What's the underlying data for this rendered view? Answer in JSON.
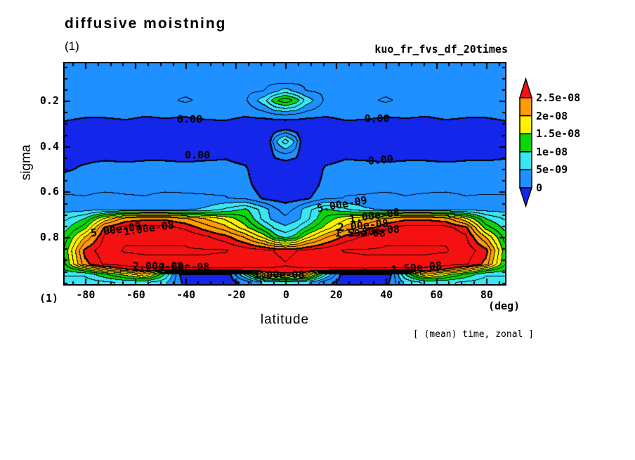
{
  "title": "diffusive moistning",
  "subtitle": "(1)",
  "run_label": "kuo_fr_fvs_df_20times",
  "footer_note": "[ (mean) time, zonal ]",
  "axes": {
    "x": {
      "label": "latitude",
      "unit": "(deg)",
      "min": -88.1,
      "max": 87.6,
      "major_ticks": [
        -80,
        -60,
        -40,
        -20,
        0,
        20,
        40,
        60,
        80
      ],
      "minor_step": 5,
      "tick_labels": [
        "-80",
        "-60",
        "-40",
        "-20",
        "0",
        "20",
        "40",
        "60",
        "80"
      ]
    },
    "y": {
      "label": "sigma",
      "min": 0.036,
      "max": 1.007,
      "major_ticks": [
        0.2,
        0.4,
        0.6,
        0.8
      ],
      "minor_step": 0.05,
      "tick_labels": [
        "0.2",
        "0.4",
        "0.6",
        "0.8"
      ]
    },
    "corner_label": "(1)"
  },
  "colorbar": {
    "labels": [
      "2.5e-08",
      "2e-08",
      "1.5e-08",
      "1e-08",
      "5e-09",
      "0"
    ],
    "band_colors_top_to_bottom": [
      "#ff9c06",
      "#fdf200",
      "#0ad60a",
      "#3ae6f2",
      "#1e90ff"
    ],
    "arrow_top_color": "#f51111",
    "arrow_bottom_color": "#1326e9"
  },
  "chart_data": {
    "type": "filled_contour",
    "xlabel": "latitude",
    "ylabel": "sigma",
    "fill_levels_1e9": [
      0,
      5,
      10,
      15,
      20,
      25
    ],
    "fill_levels": [
      0,
      5e-09,
      1e-08,
      1.5e-08,
      2e-08,
      2.5e-08
    ],
    "line_interval_1e9": 2.5,
    "line_max_1e9": 30,
    "thick_line_levels_1e9": [
      0,
      25
    ],
    "band_colors": [
      "#1326e9",
      "#1e90ff",
      "#3ae6f2",
      "#0ad60a",
      "#fdf200",
      "#ff9c06",
      "#f51111"
    ],
    "line_color": "#000000",
    "grid": {
      "lats": [
        -88,
        -80,
        -72,
        -64,
        -56,
        -48,
        -40,
        -32,
        -24,
        -16,
        -8,
        -4,
        0,
        4,
        8,
        16,
        24,
        32,
        40,
        48,
        56,
        64,
        72,
        80,
        88
      ],
      "sigmas": [
        0.03,
        0.12,
        0.16,
        0.2,
        0.26,
        0.31,
        0.38,
        0.44,
        0.5,
        0.57,
        0.63,
        0.68,
        0.72,
        0.76,
        0.8,
        0.86,
        0.92,
        0.945,
        0.965,
        1.0
      ],
      "values_1e9": [
        [
          2,
          2,
          2,
          2,
          2,
          2,
          2,
          2,
          2,
          2,
          2,
          2,
          2,
          2,
          2,
          2,
          2,
          2,
          2,
          2,
          2,
          2,
          2,
          2,
          2
        ],
        [
          2,
          2,
          2,
          2,
          2,
          2,
          2,
          2,
          2,
          2,
          2,
          2,
          2,
          2,
          2,
          2,
          2,
          2,
          2,
          2,
          2,
          2,
          2,
          2,
          2
        ],
        [
          2,
          2,
          2,
          2,
          2,
          2,
          2,
          2,
          2,
          2,
          2.6,
          4.5,
          6.5,
          4.5,
          2.6,
          2,
          2,
          2,
          2,
          2,
          2,
          2,
          2,
          2,
          2
        ],
        [
          2,
          2,
          2,
          2,
          2,
          2,
          2.8,
          2,
          2,
          2,
          7,
          12,
          14.5,
          12,
          7,
          2,
          2,
          2,
          2.8,
          2,
          2,
          2,
          2,
          2,
          2
        ],
        [
          1.2,
          0.8,
          1,
          1.4,
          0.6,
          1,
          0.8,
          1.4,
          1.2,
          0.6,
          1.5,
          2.6,
          3,
          2.6,
          1.5,
          0.6,
          1.2,
          1.4,
          0.8,
          1,
          0.6,
          1.4,
          1,
          0.8,
          1.2
        ],
        [
          -0.8,
          -1.8,
          -2.2,
          -1.5,
          -2.4,
          -1.8,
          -2.6,
          -1.6,
          -1,
          -2.2,
          -2.5,
          -3,
          -3,
          -3,
          -2.5,
          -2.2,
          -1,
          -1.6,
          -2.6,
          -1.8,
          -2.4,
          -1.5,
          -2.2,
          -1.8,
          -0.8
        ],
        [
          -2.5,
          -3,
          -3,
          -3,
          -3,
          -3,
          -3,
          -3,
          -3,
          -3,
          -4.5,
          4.5,
          9,
          4.5,
          -4.5,
          -3,
          -3,
          -3,
          -3,
          -3,
          -3,
          -3,
          -3,
          -3,
          -2.5
        ],
        [
          -0.5,
          -1,
          -1,
          -1.5,
          -1,
          -1,
          -1.5,
          -1,
          -0.5,
          -1.5,
          -4.5,
          1,
          2,
          1,
          -4.5,
          -1.5,
          -0.5,
          -1,
          -1.5,
          -1,
          -1,
          -1.5,
          -1,
          -1,
          -0.5
        ],
        [
          -0.5,
          0.5,
          1.5,
          1.5,
          1.5,
          1.5,
          1.5,
          1.5,
          1.2,
          0.5,
          -3.5,
          -3.6,
          -3,
          -3.6,
          -3.5,
          0.5,
          1.2,
          1.5,
          1.5,
          1.5,
          1.5,
          1.5,
          1.5,
          1.5,
          1.5
        ],
        [
          2,
          2,
          2,
          2,
          2,
          2,
          2,
          2,
          2,
          1,
          -2,
          -2.4,
          -2.5,
          -2.4,
          -2,
          1,
          2,
          2,
          2,
          2,
          2,
          2,
          2,
          2,
          2
        ],
        [
          2.7,
          2.6,
          2.9,
          2.7,
          2.6,
          2.9,
          2.8,
          2.7,
          2.6,
          2,
          -0.5,
          -0.9,
          -1,
          -0.9,
          -0.5,
          2,
          2.6,
          2.7,
          2.9,
          2.6,
          2.8,
          2.9,
          2.6,
          2.7,
          2.7
        ],
        [
          4,
          4,
          4.5,
          4.5,
          4.5,
          4.5,
          4.5,
          5.5,
          8,
          10.5,
          6,
          3,
          1.5,
          3,
          6,
          10.5,
          8,
          5.5,
          4.5,
          4.5,
          4.5,
          4.5,
          4.2,
          4,
          4
        ],
        [
          7,
          10,
          18,
          23.5,
          24.5,
          24.5,
          23,
          20,
          17,
          13,
          6,
          4,
          3,
          4,
          6,
          13,
          17,
          20,
          23,
          24.5,
          24.5,
          23.5,
          18,
          10,
          7
        ],
        [
          9,
          14,
          26,
          28.5,
          28.5,
          28.5,
          27,
          24,
          21,
          16,
          10.2,
          7,
          5.6,
          7,
          10.2,
          16,
          21,
          24,
          27,
          28.5,
          28.5,
          28.5,
          26,
          14,
          9
        ],
        [
          11,
          20,
          28,
          29.6,
          29.6,
          29.6,
          29.6,
          28,
          26,
          22,
          16,
          11,
          9,
          11,
          16,
          22,
          26,
          28,
          29.6,
          29.6,
          29.6,
          29.6,
          28,
          20,
          11
        ],
        [
          13,
          26,
          29,
          30.2,
          30.2,
          30.2,
          30.2,
          30.2,
          30.2,
          29,
          28,
          27.4,
          27,
          27.4,
          28,
          29,
          30.2,
          30.2,
          30.2,
          30.2,
          30.2,
          30.2,
          29,
          26,
          13
        ],
        [
          12,
          24,
          28,
          29,
          29.6,
          29.6,
          29.6,
          29.6,
          29,
          29,
          28.6,
          28,
          27.6,
          28,
          28.6,
          29,
          29,
          29.6,
          29.6,
          29.6,
          29.6,
          29,
          28,
          24,
          12
        ],
        [
          10,
          14,
          20,
          24,
          26,
          26,
          26,
          26.6,
          26.6,
          26.8,
          27,
          27.1,
          27.2,
          27.1,
          27,
          26.8,
          26.6,
          26.6,
          26,
          26,
          26,
          24,
          20,
          14,
          10
        ],
        [
          8,
          8,
          12,
          16,
          20,
          10,
          -3.5,
          -3.5,
          -3,
          8,
          22,
          23,
          24,
          23,
          22,
          8,
          -3,
          -3.5,
          -3.5,
          10,
          20,
          16,
          12,
          8,
          8
        ],
        [
          6,
          6,
          7,
          8,
          8,
          5.6,
          -1,
          -2,
          -2,
          1,
          6,
          6.5,
          7,
          6.5,
          6,
          1,
          -2,
          -2,
          -1,
          5.6,
          8,
          8,
          7,
          6,
          6
        ]
      ]
    },
    "contour_labels": [
      {
        "text": "0.00",
        "lat": -38.2,
        "sigma": 0.284,
        "rot": 0
      },
      {
        "text": "0.00",
        "lat": 36.5,
        "sigma": 0.28,
        "rot": 0
      },
      {
        "text": "0.00",
        "lat": -35.1,
        "sigma": 0.441,
        "rot": 0
      },
      {
        "text": "0.00",
        "lat": 37.9,
        "sigma": 0.463,
        "rot": -5
      },
      {
        "text": "5.00e-09",
        "lat": 22.7,
        "sigma": 0.658,
        "rot": -10
      },
      {
        "text": "1.00e-08",
        "lat": 35.4,
        "sigma": 0.707,
        "rot": -8
      },
      {
        "text": "2.00e-08",
        "lat": 30.9,
        "sigma": 0.751,
        "rot": -5
      },
      {
        "text": "2.50e-08",
        "lat": 35.4,
        "sigma": 0.775,
        "rot": -5
      },
      {
        "text": "1.50e-08",
        "lat": 29.8,
        "sigma": 0.785,
        "rot": 0
      },
      {
        "text": "5.00e-09",
        "lat": -67.6,
        "sigma": 0.769,
        "rot": -8
      },
      {
        "text": "1.00e-08",
        "lat": -54.5,
        "sigma": 0.763,
        "rot": -8
      },
      {
        "text": "2.00e-08",
        "lat": -50.8,
        "sigma": 0.93,
        "rot": 0
      },
      {
        "text": "2.50e-08",
        "lat": -40.4,
        "sigma": 0.933,
        "rot": 0
      },
      {
        "text": "1.00e-08",
        "lat": -2.5,
        "sigma": 0.967,
        "rot": 0
      },
      {
        "text": "1.50e-08",
        "lat": 52.2,
        "sigma": 0.936,
        "rot": -5
      }
    ]
  }
}
